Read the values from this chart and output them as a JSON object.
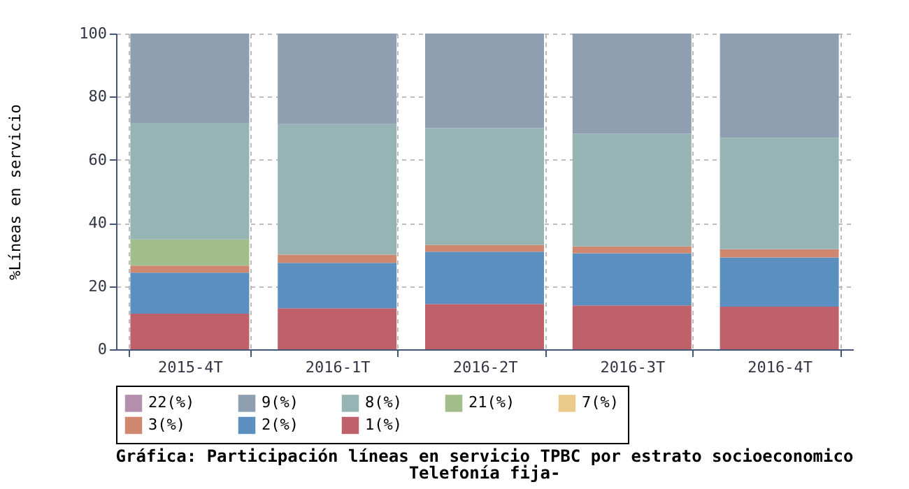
{
  "chart_data": {
    "type": "bar",
    "stacked": true,
    "title": "Gráfica: Participación líneas en servicio TPBC por estrato socioeconomico",
    "subtitle": "Telefonía fija-",
    "ylabel": "%Líneas en servicio",
    "categories": [
      "2015-4T",
      "2016-1T",
      "2016-2T",
      "2016-3T",
      "2016-4T"
    ],
    "series": [
      {
        "name": "1(%)",
        "color": "#bf616a",
        "values": [
          11.3,
          13.0,
          14.3,
          13.9,
          13.5
        ]
      },
      {
        "name": "2(%)",
        "color": "#5b8fbf",
        "values": [
          13.0,
          14.4,
          16.6,
          16.5,
          15.6
        ]
      },
      {
        "name": "3(%)",
        "color": "#d08770",
        "values": [
          2.2,
          2.6,
          2.1,
          2.2,
          2.6
        ]
      },
      {
        "name": "7(%)",
        "color": "#ebcb8b",
        "values": [
          0,
          0,
          0,
          0,
          0
        ]
      },
      {
        "name": "21(%)",
        "color": "#a3be8c",
        "values": [
          8.3,
          0,
          0,
          0,
          0
        ]
      },
      {
        "name": "8(%)",
        "color": "#96b4b3",
        "values": [
          36.9,
          41.3,
          37.0,
          35.7,
          35.3
        ]
      },
      {
        "name": "9(%)",
        "color": "#8e9fb2",
        "values": [
          28.3,
          28.7,
          30.0,
          31.7,
          33.0
        ]
      },
      {
        "name": "22(%)",
        "color": "#b48ead",
        "values": [
          0,
          0,
          0,
          0,
          0
        ]
      }
    ],
    "ylim": [
      0,
      100
    ],
    "yticks": [
      0,
      20,
      40,
      60,
      80,
      100
    ],
    "grid": true,
    "legend": "bottom"
  }
}
